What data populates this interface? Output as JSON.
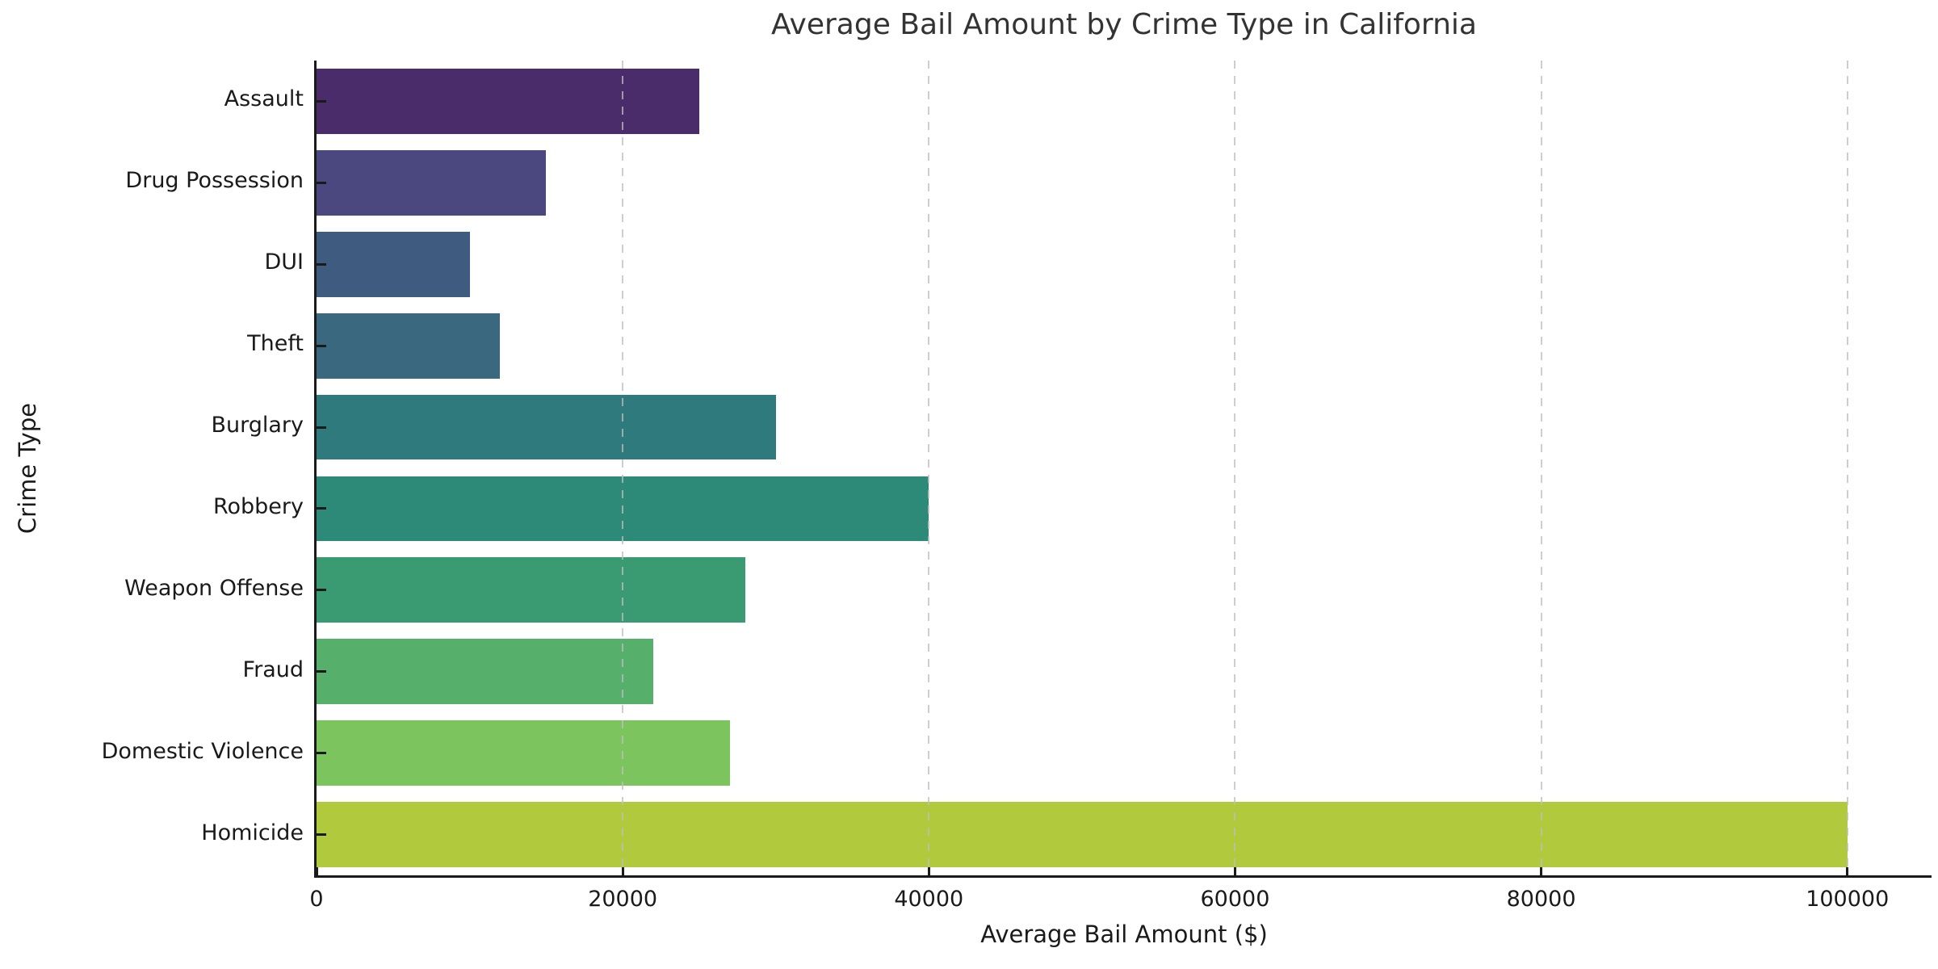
{
  "chart_data": {
    "type": "bar",
    "orientation": "horizontal",
    "title": "Average Bail Amount by Crime Type in California",
    "xlabel": "Average Bail Amount ($)",
    "ylabel": "Crime Type",
    "categories": [
      "Assault",
      "Drug Possession",
      "DUI",
      "Theft",
      "Burglary",
      "Robbery",
      "Weapon Offense",
      "Fraud",
      "Domestic Violence",
      "Homicide"
    ],
    "values": [
      25000,
      15000,
      10000,
      12000,
      30000,
      40000,
      28000,
      22000,
      27000,
      100000
    ],
    "bar_colors": [
      "#4a2c6a",
      "#4a487e",
      "#3f5b80",
      "#39687f",
      "#2e7a7d",
      "#2e8a78",
      "#3a9a72",
      "#56b06c",
      "#7cc45e",
      "#b1c93c"
    ],
    "xlim": [
      0,
      105500
    ],
    "xticks": [
      0,
      20000,
      40000,
      60000,
      80000,
      100000
    ],
    "bar_fraction": 0.8,
    "grid": {
      "axis": "x",
      "style": "dashed",
      "color": "#c8c8c8",
      "drawn_over_bars": true
    },
    "axis_color": "#1a1a1a",
    "text_color": "#262626",
    "background": "#ffffff",
    "legend": null
  }
}
